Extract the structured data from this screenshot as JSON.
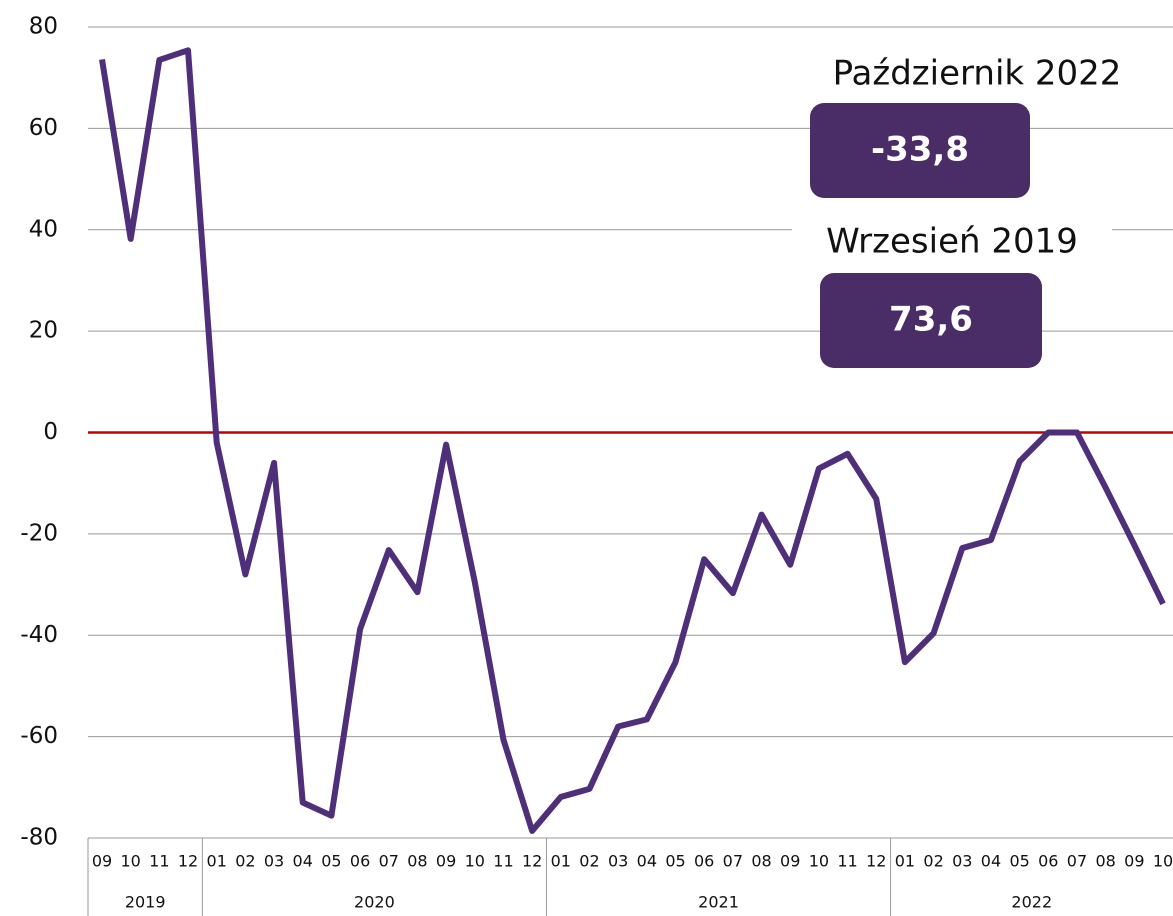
{
  "chart_data": {
    "type": "line",
    "categories": [
      "09",
      "10",
      "11",
      "12",
      "01",
      "02",
      "03",
      "04",
      "05",
      "06",
      "07",
      "08",
      "09",
      "10",
      "11",
      "12",
      "01",
      "02",
      "03",
      "04",
      "05",
      "06",
      "07",
      "08",
      "09",
      "10",
      "11",
      "12",
      "01",
      "02",
      "03",
      "04",
      "05",
      "06",
      "07",
      "08",
      "09",
      "10"
    ],
    "year_groups": [
      "2019",
      "2020",
      "2021",
      "2022"
    ],
    "series": [
      {
        "color": "#4f2f7a",
        "values": [
          73.6,
          38.2,
          73.5,
          75.4,
          -2,
          -28,
          -6,
          -73,
          -75.6,
          -38.8,
          -23.2,
          -31.5,
          -2.4,
          -29.5,
          -60.6,
          -78.6,
          -71.9,
          -70.3,
          -58,
          -56.6,
          -45.3,
          -25,
          -31.7,
          -16.2,
          -26.1,
          -7.1,
          -4.2,
          -13.1,
          -45.3,
          -39.6,
          -22.8,
          -21.2,
          -5.7,
          0,
          0,
          -10.9,
          -22.2,
          -33.8
        ]
      }
    ],
    "ylim": [
      -80,
      80
    ],
    "yticks": [
      -80,
      -60,
      -40,
      -20,
      0,
      20,
      40,
      60,
      80
    ],
    "grid": true,
    "zero_line_color": "#c00000",
    "annotations": [
      {
        "label": "Październik 2022",
        "value_label": "-33,8"
      },
      {
        "label": "Wrzesień 2019",
        "value_label": "73,6"
      }
    ]
  }
}
